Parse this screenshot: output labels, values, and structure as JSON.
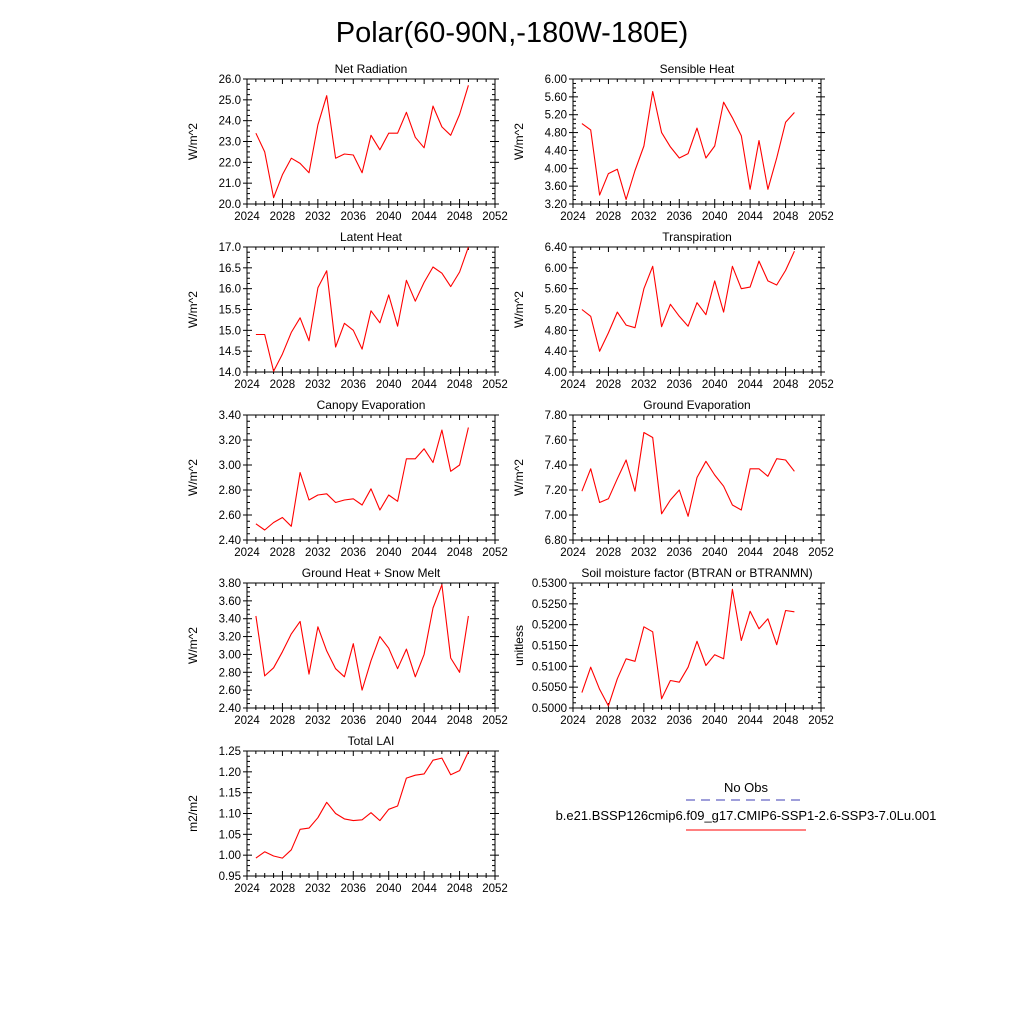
{
  "figure": {
    "title": "Polar(60-90N,-180W-180E)"
  },
  "chart_data": [
    {
      "type": "line",
      "title": "Net Radiation",
      "ylabel": "W/m^2",
      "xlim": [
        2024,
        2052
      ],
      "ylim": [
        20.0,
        26.0
      ],
      "xticks": [
        2024,
        2028,
        2032,
        2036,
        2040,
        2044,
        2048,
        2052
      ],
      "yticks": [
        "20.0",
        "21.0",
        "22.0",
        "23.0",
        "24.0",
        "25.0",
        "26.0"
      ],
      "series": [
        {
          "x": [
            2025,
            2026,
            2027,
            2028,
            2029,
            2030,
            2031,
            2032,
            2033,
            2034,
            2035,
            2036,
            2037,
            2038,
            2039,
            2040,
            2041,
            2042,
            2043,
            2044,
            2045,
            2046,
            2047,
            2048,
            2049
          ],
          "values": [
            23.4,
            22.5,
            20.3,
            21.4,
            22.2,
            21.95,
            21.5,
            23.8,
            25.2,
            22.2,
            22.4,
            22.35,
            21.5,
            23.3,
            22.6,
            23.4,
            23.4,
            24.4,
            23.2,
            22.7,
            24.7,
            23.7,
            23.3,
            24.3,
            25.7
          ]
        }
      ]
    },
    {
      "type": "line",
      "title": "Sensible Heat",
      "ylabel": "W/m^2",
      "xlim": [
        2024,
        2052
      ],
      "ylim": [
        3.2,
        6.0
      ],
      "xticks": [
        2024,
        2028,
        2032,
        2036,
        2040,
        2044,
        2048,
        2052
      ],
      "yticks": [
        "3.20",
        "3.60",
        "4.00",
        "4.40",
        "4.80",
        "5.20",
        "5.60",
        "6.00"
      ],
      "series": [
        {
          "x": [
            2025,
            2026,
            2027,
            2028,
            2029,
            2030,
            2031,
            2032,
            2033,
            2034,
            2035,
            2036,
            2037,
            2038,
            2039,
            2040,
            2041,
            2042,
            2043,
            2044,
            2045,
            2046,
            2047,
            2048,
            2049
          ],
          "values": [
            5.0,
            4.86,
            3.4,
            3.88,
            3.98,
            3.3,
            3.95,
            4.5,
            5.72,
            4.8,
            4.48,
            4.23,
            4.33,
            4.9,
            4.23,
            4.5,
            5.48,
            5.13,
            4.73,
            3.53,
            4.62,
            3.53,
            4.23,
            5.03,
            5.25
          ]
        }
      ]
    },
    {
      "type": "line",
      "title": "Latent Heat",
      "ylabel": "W/m^2",
      "xlim": [
        2024,
        2052
      ],
      "ylim": [
        14.0,
        17.0
      ],
      "xticks": [
        2024,
        2028,
        2032,
        2036,
        2040,
        2044,
        2048,
        2052
      ],
      "yticks": [
        "14.0",
        "14.5",
        "15.0",
        "15.5",
        "16.0",
        "16.5",
        "17.0"
      ],
      "series": [
        {
          "x": [
            2025,
            2026,
            2027,
            2028,
            2029,
            2030,
            2031,
            2032,
            2033,
            2034,
            2035,
            2036,
            2037,
            2038,
            2039,
            2040,
            2041,
            2042,
            2043,
            2044,
            2045,
            2046,
            2047,
            2048,
            2049
          ],
          "values": [
            14.9,
            14.9,
            14.02,
            14.43,
            14.95,
            15.3,
            14.75,
            16.02,
            16.43,
            14.6,
            15.17,
            15.0,
            14.55,
            15.47,
            15.18,
            15.85,
            15.1,
            16.2,
            15.7,
            16.15,
            16.52,
            16.37,
            16.05,
            16.4,
            17.0
          ]
        }
      ]
    },
    {
      "type": "line",
      "title": "Transpiration",
      "ylabel": "W/m^2",
      "xlim": [
        2024,
        2052
      ],
      "ylim": [
        4.0,
        6.4
      ],
      "xticks": [
        2024,
        2028,
        2032,
        2036,
        2040,
        2044,
        2048,
        2052
      ],
      "yticks": [
        "4.00",
        "4.40",
        "4.80",
        "5.20",
        "5.60",
        "6.00",
        "6.40"
      ],
      "series": [
        {
          "x": [
            2025,
            2026,
            2027,
            2028,
            2029,
            2030,
            2031,
            2032,
            2033,
            2034,
            2035,
            2036,
            2037,
            2038,
            2039,
            2040,
            2041,
            2042,
            2043,
            2044,
            2045,
            2046,
            2047,
            2048,
            2049
          ],
          "values": [
            5.2,
            5.07,
            4.4,
            4.75,
            5.15,
            4.9,
            4.85,
            5.6,
            6.03,
            4.87,
            5.3,
            5.07,
            4.88,
            5.33,
            5.1,
            5.75,
            5.15,
            6.03,
            5.6,
            5.63,
            6.13,
            5.75,
            5.67,
            5.95,
            6.32
          ]
        }
      ]
    },
    {
      "type": "line",
      "title": "Canopy Evaporation",
      "ylabel": "W/m^2",
      "xlim": [
        2024,
        2052
      ],
      "ylim": [
        2.4,
        3.4
      ],
      "xticks": [
        2024,
        2028,
        2032,
        2036,
        2040,
        2044,
        2048,
        2052
      ],
      "yticks": [
        "2.40",
        "2.60",
        "2.80",
        "3.00",
        "3.20",
        "3.40"
      ],
      "series": [
        {
          "x": [
            2025,
            2026,
            2027,
            2028,
            2029,
            2030,
            2031,
            2032,
            2033,
            2034,
            2035,
            2036,
            2037,
            2038,
            2039,
            2040,
            2041,
            2042,
            2043,
            2044,
            2045,
            2046,
            2047,
            2048,
            2049
          ],
          "values": [
            2.53,
            2.48,
            2.54,
            2.58,
            2.51,
            2.94,
            2.72,
            2.76,
            2.77,
            2.7,
            2.72,
            2.73,
            2.68,
            2.81,
            2.64,
            2.76,
            2.71,
            3.05,
            3.05,
            3.13,
            3.02,
            3.28,
            2.95,
            3.0,
            3.3
          ]
        }
      ]
    },
    {
      "type": "line",
      "title": "Ground Evaporation",
      "ylabel": "W/m^2",
      "xlim": [
        2024,
        2052
      ],
      "ylim": [
        6.8,
        7.8
      ],
      "xticks": [
        2024,
        2028,
        2032,
        2036,
        2040,
        2044,
        2048,
        2052
      ],
      "yticks": [
        "6.80",
        "7.00",
        "7.20",
        "7.40",
        "7.60",
        "7.80"
      ],
      "series": [
        {
          "x": [
            2025,
            2026,
            2027,
            2028,
            2029,
            2030,
            2031,
            2032,
            2033,
            2034,
            2035,
            2036,
            2037,
            2038,
            2039,
            2040,
            2041,
            2042,
            2043,
            2044,
            2045,
            2046,
            2047,
            2048,
            2049
          ],
          "values": [
            7.19,
            7.37,
            7.1,
            7.13,
            7.29,
            7.44,
            7.19,
            7.66,
            7.62,
            7.01,
            7.12,
            7.2,
            6.99,
            7.3,
            7.43,
            7.32,
            7.23,
            7.08,
            7.04,
            7.37,
            7.37,
            7.31,
            7.45,
            7.44,
            7.35
          ]
        }
      ]
    },
    {
      "type": "line",
      "title": "Ground Heat + Snow Melt",
      "ylabel": "W/m^2",
      "xlim": [
        2024,
        2052
      ],
      "ylim": [
        2.4,
        3.8
      ],
      "xticks": [
        2024,
        2028,
        2032,
        2036,
        2040,
        2044,
        2048,
        2052
      ],
      "yticks": [
        "2.40",
        "2.60",
        "2.80",
        "3.00",
        "3.20",
        "3.40",
        "3.60",
        "3.80"
      ],
      "series": [
        {
          "x": [
            2025,
            2026,
            2027,
            2028,
            2029,
            2030,
            2031,
            2032,
            2033,
            2034,
            2035,
            2036,
            2037,
            2038,
            2039,
            2040,
            2041,
            2042,
            2043,
            2044,
            2045,
            2046,
            2047,
            2048,
            2049
          ],
          "values": [
            3.43,
            2.76,
            2.85,
            3.03,
            3.23,
            3.37,
            2.78,
            3.31,
            3.04,
            2.84,
            2.75,
            3.12,
            2.6,
            2.93,
            3.2,
            3.07,
            2.84,
            3.06,
            2.75,
            3.0,
            3.52,
            3.78,
            2.96,
            2.8,
            3.43
          ]
        }
      ]
    },
    {
      "type": "line",
      "title": "Soil moisture factor (BTRAN or BTRANMN)",
      "ylabel": "unitless",
      "xlim": [
        2024,
        2052
      ],
      "ylim": [
        0.5,
        0.53
      ],
      "xticks": [
        2024,
        2028,
        2032,
        2036,
        2040,
        2044,
        2048,
        2052
      ],
      "yticks": [
        "0.5000",
        "0.5050",
        "0.5100",
        "0.5150",
        "0.5200",
        "0.5250",
        "0.5300"
      ],
      "series": [
        {
          "x": [
            2025,
            2026,
            2027,
            2028,
            2029,
            2030,
            2031,
            2032,
            2033,
            2034,
            2035,
            2036,
            2037,
            2038,
            2039,
            2040,
            2041,
            2042,
            2043,
            2044,
            2045,
            2046,
            2047,
            2048,
            2049
          ],
          "values": [
            0.5037,
            0.5098,
            0.5045,
            0.5005,
            0.507,
            0.5118,
            0.5112,
            0.5195,
            0.5183,
            0.5022,
            0.5066,
            0.5062,
            0.5098,
            0.516,
            0.5102,
            0.5128,
            0.5118,
            0.5285,
            0.5162,
            0.5232,
            0.519,
            0.5214,
            0.5152,
            0.5234,
            0.5231
          ]
        }
      ]
    },
    {
      "type": "line",
      "title": "Total LAI",
      "ylabel": "m2/m2",
      "xlim": [
        2024,
        2052
      ],
      "ylim": [
        0.95,
        1.25
      ],
      "xticks": [
        2024,
        2028,
        2032,
        2036,
        2040,
        2044,
        2048,
        2052
      ],
      "yticks": [
        "0.95",
        "1.00",
        "1.05",
        "1.10",
        "1.15",
        "1.20",
        "1.25"
      ],
      "series": [
        {
          "x": [
            2025,
            2026,
            2027,
            2028,
            2029,
            2030,
            2031,
            2032,
            2033,
            2034,
            2035,
            2036,
            2037,
            2038,
            2039,
            2040,
            2041,
            2042,
            2043,
            2044,
            2045,
            2046,
            2047,
            2048,
            2049
          ],
          "values": [
            0.993,
            1.008,
            0.998,
            0.993,
            1.013,
            1.062,
            1.065,
            1.09,
            1.127,
            1.1,
            1.087,
            1.083,
            1.085,
            1.102,
            1.083,
            1.11,
            1.118,
            1.185,
            1.192,
            1.195,
            1.228,
            1.233,
            1.193,
            1.203,
            1.248
          ]
        }
      ]
    }
  ],
  "legend": {
    "entries": [
      {
        "label": "No Obs",
        "color": "#3c3cb4",
        "style": "dashed"
      },
      {
        "label": "b.e21.BSSP126cmip6.f09_g17.CMIP6-SSP1-2.6-SSP3-7.0Lu.001",
        "color": "#ff0000",
        "style": "solid"
      }
    ]
  },
  "colors": {
    "series_line": "#ff0000",
    "axes": "#000000"
  }
}
